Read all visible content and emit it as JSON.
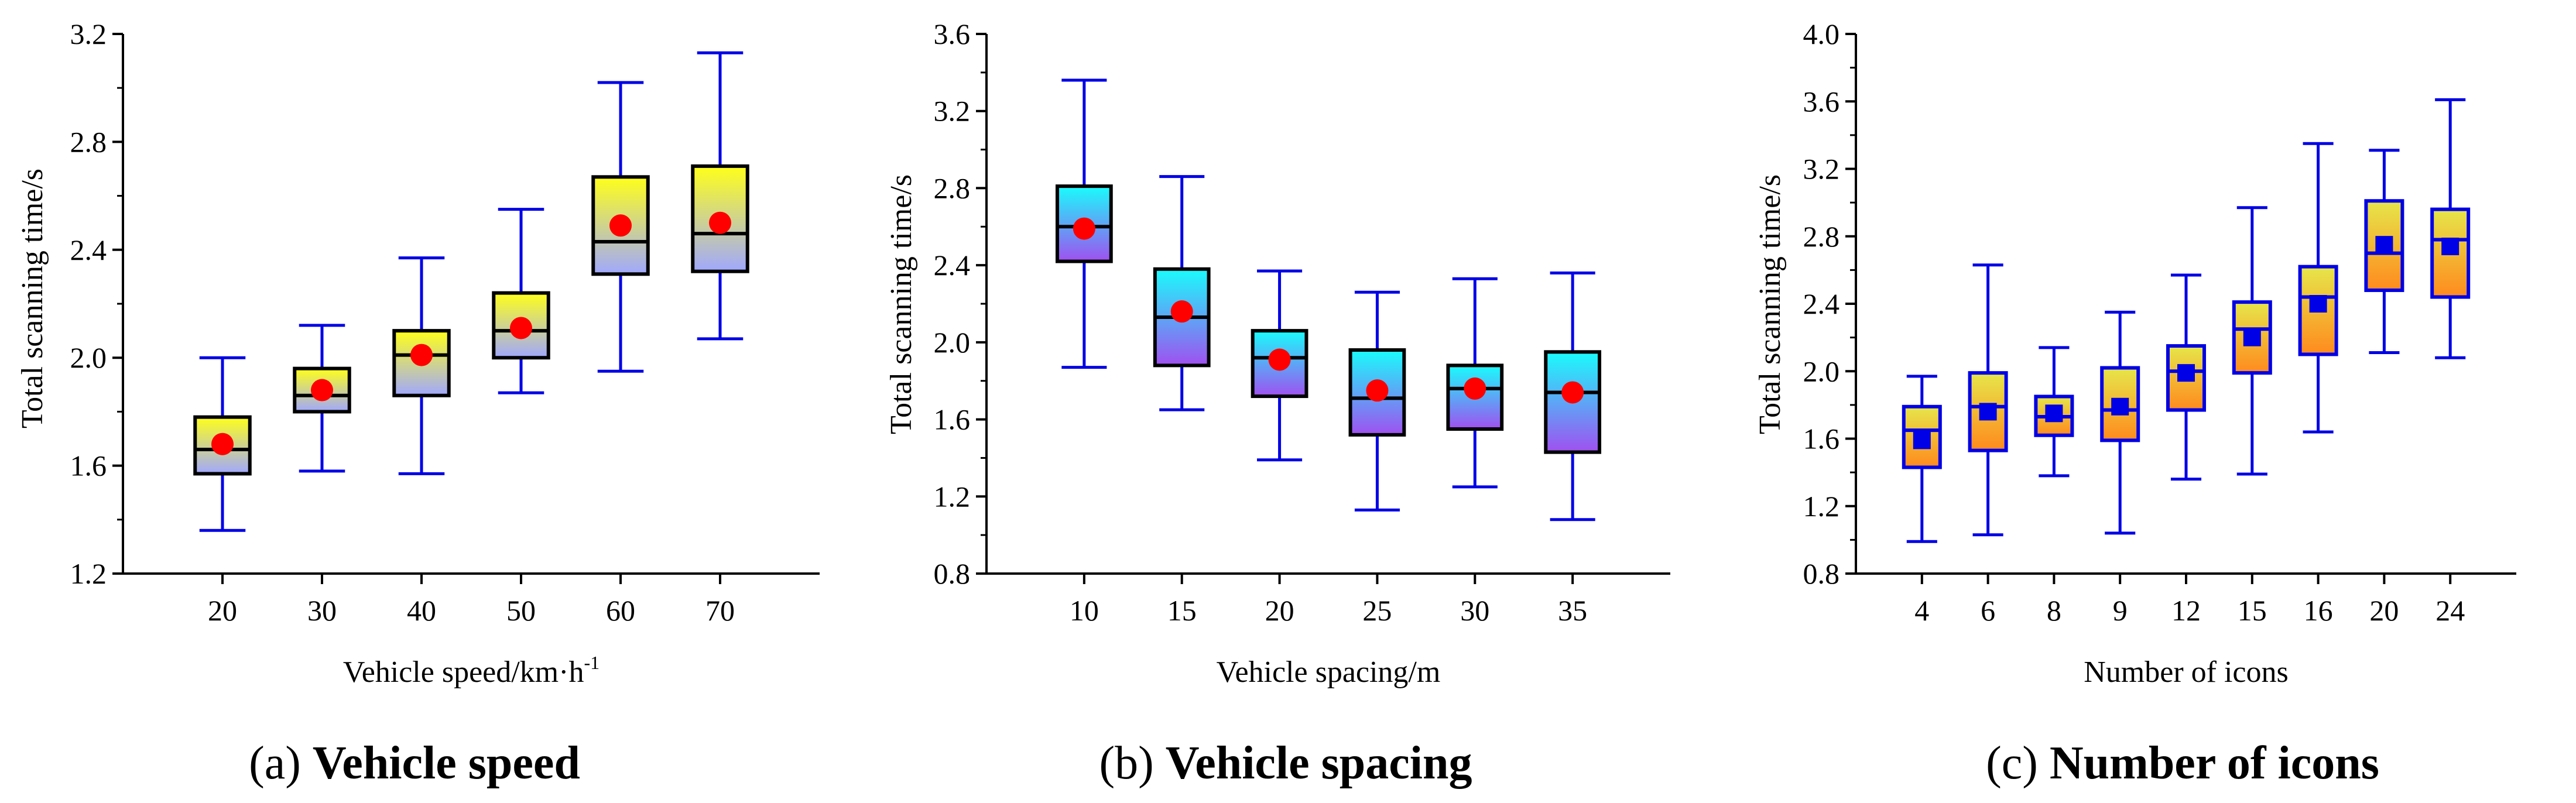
{
  "chart_data": [
    {
      "type": "boxplot",
      "caption": {
        "letter": "(a)",
        "title": "Vehicle speed"
      },
      "xlabel": "Vehicle speed/km·h",
      "xlabel_sup": "-1",
      "ylabel": "Total scanning time/s",
      "ylim": [
        1.2,
        3.2
      ],
      "yticks": [
        "1.2",
        "1.6",
        "2.0",
        "2.4",
        "2.8",
        "3.2"
      ],
      "categories": [
        "20",
        "30",
        "40",
        "50",
        "60",
        "70"
      ],
      "boxes": [
        {
          "min": 1.36,
          "q1": 1.57,
          "median": 1.66,
          "q3": 1.78,
          "max": 2.0,
          "mean": 1.68
        },
        {
          "min": 1.58,
          "q1": 1.8,
          "median": 1.86,
          "q3": 1.96,
          "max": 2.12,
          "mean": 1.88
        },
        {
          "min": 1.57,
          "q1": 1.86,
          "median": 2.01,
          "q3": 2.1,
          "max": 2.37,
          "mean": 2.01
        },
        {
          "min": 1.87,
          "q1": 2.0,
          "median": 2.1,
          "q3": 2.24,
          "max": 2.55,
          "mean": 2.11
        },
        {
          "min": 1.95,
          "q1": 2.31,
          "median": 2.43,
          "q3": 2.67,
          "max": 3.02,
          "mean": 2.49
        },
        {
          "min": 2.07,
          "q1": 2.32,
          "median": 2.46,
          "q3": 2.71,
          "max": 3.13,
          "mean": 2.5
        }
      ],
      "style": {
        "box_top": "#ffff1a",
        "box_bottom": "#a0a8ff",
        "box_stroke": "#000000",
        "whisker": "#0000e6",
        "mean_color": "#ff0000",
        "mean_marker": "circle"
      }
    },
    {
      "type": "boxplot",
      "caption": {
        "letter": "(b)",
        "title": "Vehicle spacing"
      },
      "xlabel": "Vehicle spacing/m",
      "xlabel_sup": "",
      "ylabel": "Total scanning time/s",
      "ylim": [
        0.8,
        3.6
      ],
      "yticks": [
        "0.8",
        "1.2",
        "1.6",
        "2.0",
        "2.4",
        "2.8",
        "3.2",
        "3.6"
      ],
      "categories": [
        "10",
        "15",
        "20",
        "25",
        "30",
        "35"
      ],
      "boxes": [
        {
          "min": 1.87,
          "q1": 2.42,
          "median": 2.6,
          "q3": 2.81,
          "max": 3.36,
          "mean": 2.59
        },
        {
          "min": 1.65,
          "q1": 1.88,
          "median": 2.13,
          "q3": 2.38,
          "max": 2.86,
          "mean": 2.16
        },
        {
          "min": 1.39,
          "q1": 1.72,
          "median": 1.92,
          "q3": 2.06,
          "max": 2.37,
          "mean": 1.91
        },
        {
          "min": 1.13,
          "q1": 1.52,
          "median": 1.71,
          "q3": 1.96,
          "max": 2.26,
          "mean": 1.75
        },
        {
          "min": 1.25,
          "q1": 1.55,
          "median": 1.76,
          "q3": 1.88,
          "max": 2.33,
          "mean": 1.76
        },
        {
          "min": 1.08,
          "q1": 1.43,
          "median": 1.74,
          "q3": 1.95,
          "max": 2.36,
          "mean": 1.74
        }
      ],
      "style": {
        "box_top": "#1afcfc",
        "box_bottom": "#a050f0",
        "box_stroke": "#000000",
        "whisker": "#0000e6",
        "mean_color": "#ff0000",
        "mean_marker": "circle"
      }
    },
    {
      "type": "boxplot",
      "caption": {
        "letter": "(c)",
        "title": "Number of icons"
      },
      "xlabel": "Number of icons",
      "xlabel_sup": "",
      "ylabel": "Total scanning time/s",
      "ylim": [
        0.8,
        4.0
      ],
      "yticks": [
        "0.8",
        "1.2",
        "1.6",
        "2.0",
        "2.4",
        "2.8",
        "3.2",
        "3.6",
        "4.0"
      ],
      "categories": [
        "4",
        "6",
        "8",
        "9",
        "12",
        "15",
        "16",
        "20",
        "24"
      ],
      "boxes": [
        {
          "min": 0.99,
          "q1": 1.43,
          "median": 1.65,
          "q3": 1.79,
          "max": 1.97,
          "mean": 1.59
        },
        {
          "min": 1.03,
          "q1": 1.53,
          "median": 1.79,
          "q3": 1.99,
          "max": 2.63,
          "mean": 1.76
        },
        {
          "min": 1.38,
          "q1": 1.62,
          "median": 1.73,
          "q3": 1.85,
          "max": 2.14,
          "mean": 1.75
        },
        {
          "min": 1.04,
          "q1": 1.59,
          "median": 1.77,
          "q3": 2.02,
          "max": 2.35,
          "mean": 1.79
        },
        {
          "min": 1.36,
          "q1": 1.77,
          "median": 2.0,
          "q3": 2.15,
          "max": 2.57,
          "mean": 1.99
        },
        {
          "min": 1.39,
          "q1": 1.99,
          "median": 2.25,
          "q3": 2.41,
          "max": 2.97,
          "mean": 2.2
        },
        {
          "min": 1.64,
          "q1": 2.1,
          "median": 2.44,
          "q3": 2.62,
          "max": 3.35,
          "mean": 2.4
        },
        {
          "min": 2.11,
          "q1": 2.48,
          "median": 2.7,
          "q3": 3.01,
          "max": 3.31,
          "mean": 2.75
        },
        {
          "min": 2.08,
          "q1": 2.44,
          "median": 2.78,
          "q3": 2.96,
          "max": 3.61,
          "mean": 2.74
        }
      ],
      "style": {
        "box_top": "#e6e64a",
        "box_bottom": "#ff8a1e",
        "box_stroke": "#0000e6",
        "whisker": "#0000e6",
        "mean_color": "#0000e6",
        "mean_marker": "square"
      }
    }
  ]
}
